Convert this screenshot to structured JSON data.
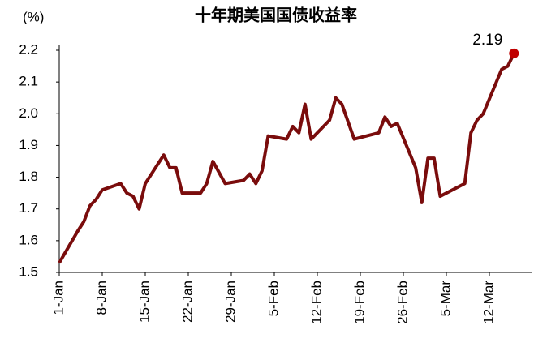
{
  "chart_data": {
    "type": "line",
    "title": "十年期美国国债收益率",
    "y_unit": "(%)",
    "x": [
      0,
      3,
      4,
      5,
      6,
      7,
      10,
      11,
      12,
      13,
      14,
      17,
      18,
      19,
      20,
      23,
      24,
      25,
      27,
      30,
      31,
      32,
      33,
      34,
      37,
      38,
      39,
      40,
      41,
      44,
      45,
      46,
      48,
      52,
      53,
      54,
      55,
      58,
      59,
      60,
      61,
      62,
      66,
      67,
      68,
      69,
      72,
      73,
      74
    ],
    "series": [
      {
        "color": "#7a0c0c",
        "highlight_color": "#c00000",
        "values": [
          1.53,
          1.63,
          1.66,
          1.71,
          1.73,
          1.76,
          1.78,
          1.75,
          1.74,
          1.7,
          1.78,
          1.87,
          1.83,
          1.83,
          1.75,
          1.75,
          1.78,
          1.85,
          1.78,
          1.79,
          1.81,
          1.78,
          1.82,
          1.93,
          1.92,
          1.96,
          1.94,
          2.03,
          1.92,
          1.98,
          2.05,
          2.03,
          1.92,
          1.94,
          1.99,
          1.96,
          1.97,
          1.83,
          1.72,
          1.86,
          1.86,
          1.74,
          1.78,
          1.94,
          1.98,
          2.0,
          2.14,
          2.15,
          2.19
        ],
        "value_labels": [
          null,
          null,
          null,
          null,
          null,
          null,
          null,
          null,
          null,
          null,
          null,
          null,
          null,
          null,
          null,
          null,
          null,
          null,
          null,
          null,
          null,
          null,
          null,
          null,
          null,
          null,
          null,
          null,
          null,
          null,
          null,
          null,
          null,
          null,
          null,
          null,
          null,
          null,
          null,
          null,
          null,
          null,
          null,
          null,
          null,
          null,
          null,
          null,
          "2.19"
        ]
      }
    ],
    "xlim": [
      0,
      77
    ],
    "xticks": [
      {
        "value": 0,
        "label": "1-Jan"
      },
      {
        "value": 7,
        "label": "8-Jan"
      },
      {
        "value": 14,
        "label": "15-Jan"
      },
      {
        "value": 21,
        "label": "22-Jan"
      },
      {
        "value": 28,
        "label": "29-Jan"
      },
      {
        "value": 35,
        "label": "5-Feb"
      },
      {
        "value": 42,
        "label": "12-Feb"
      },
      {
        "value": 49,
        "label": "19-Feb"
      },
      {
        "value": 56,
        "label": "26-Feb"
      },
      {
        "value": 63,
        "label": "5-Mar"
      },
      {
        "value": 70,
        "label": "12-Mar"
      }
    ],
    "ylim": [
      1.5,
      2.2
    ],
    "yticks": [
      1.5,
      1.6,
      1.7,
      1.8,
      1.9,
      {
        "value": 2,
        "label": "2.0"
      },
      2.1,
      2.2
    ],
    "grid": false
  }
}
